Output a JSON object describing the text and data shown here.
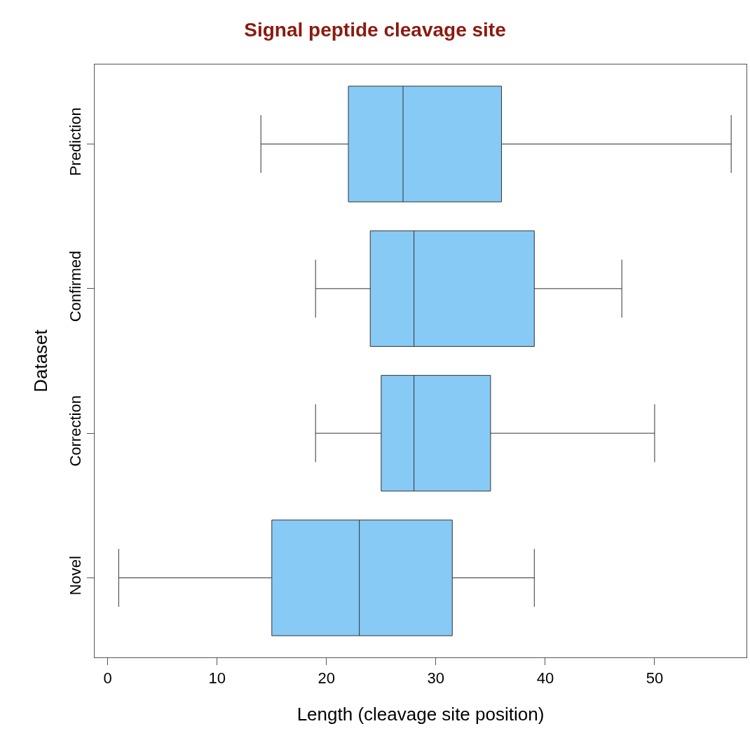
{
  "chart_data": {
    "type": "box",
    "title": "Signal peptide cleavage site",
    "xlabel": "Length (cleavage site position)",
    "ylabel": "Dataset",
    "orientation": "horizontal",
    "color": "#87caf5",
    "categories": [
      "Prediction",
      "Confirmed",
      "Correction",
      "Novel"
    ],
    "boxes": [
      {
        "low": 14,
        "q1": 22,
        "median": 27,
        "q3": 36,
        "high": 57
      },
      {
        "low": 19,
        "q1": 24,
        "median": 28,
        "q3": 39,
        "high": 47
      },
      {
        "low": 19,
        "q1": 25,
        "median": 28,
        "q3": 35,
        "high": 50
      },
      {
        "low": 1,
        "q1": 15,
        "median": 23,
        "q3": 31.5,
        "high": 39
      }
    ],
    "xlim": [
      -1.2,
      58.4
    ],
    "xticks": [
      0,
      10,
      20,
      30,
      40,
      50
    ]
  }
}
